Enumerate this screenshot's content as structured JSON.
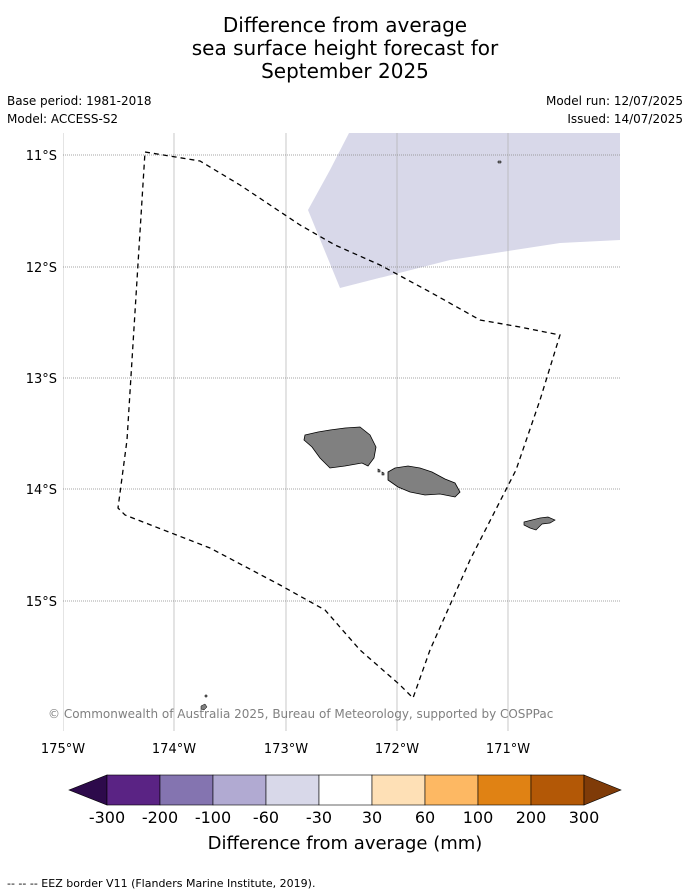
{
  "title_lines": [
    "Difference from average",
    "sea surface height forecast for",
    "September 2025"
  ],
  "meta": {
    "base_period": "Base period: 1981-2018",
    "model": "Model: ACCESS-S2",
    "model_run": "Model run: 12/07/2025",
    "issued": "Issued: 14/07/2025"
  },
  "map": {
    "lat_labels": [
      "11°S",
      "12°S",
      "13°S",
      "14°S",
      "15°S"
    ],
    "lon_labels": [
      "175°W",
      "174°W",
      "173°W",
      "172°W",
      "171°W"
    ],
    "copyright": "© Commonwealth of Australia 2025, Bureau of Meteorology, supported by COSPPac",
    "colors": {
      "anomaly_fill": "#d8d8e9",
      "land": "#808080",
      "gridline": "#b0b0b0",
      "eez_border": "#000000"
    }
  },
  "colorbar": {
    "ticks": [
      "-300",
      "-200",
      "-100",
      "-60",
      "-30",
      "30",
      "60",
      "100",
      "200",
      "300"
    ],
    "colors": [
      "#2d0a4b",
      "#5a2384",
      "#8474b0",
      "#b1aad2",
      "#d8d8e9",
      "#ffffff",
      "#fee0b6",
      "#fdb863",
      "#e08214",
      "#b35806",
      "#7f3b08"
    ],
    "title": "Difference from average (mm)"
  },
  "footer": "-- -- -- EEZ border V11 (Flanders Marine Institute, 2019)."
}
